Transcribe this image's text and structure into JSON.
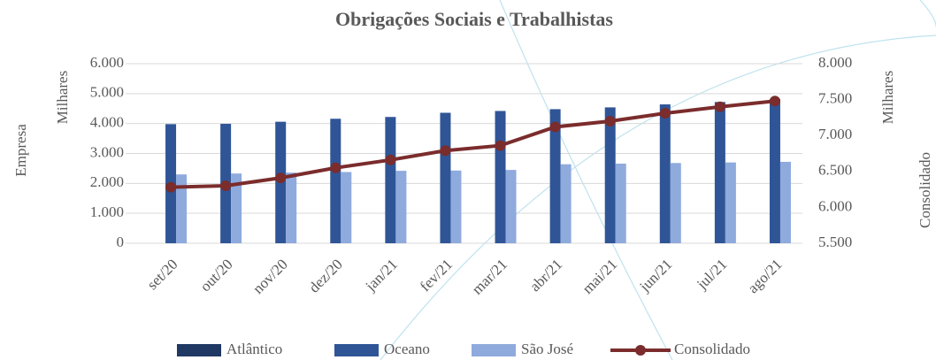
{
  "chart_data": {
    "type": "bar",
    "title": "Obrigações Sociais e Trabalhistas",
    "y_label_outer": "Empresa",
    "y_label": "Milhares",
    "y2_label": "Milhares",
    "y2_label_outer": "Consolidado",
    "categories": [
      "set/20",
      "out/20",
      "nov/20",
      "dez/20",
      "jan/21",
      "fev/21",
      "mar/21",
      "abr/21",
      "mai/21",
      "jun/21",
      "jul/21",
      "ago/21"
    ],
    "series": [
      {
        "name": "Atlântico",
        "type": "bar",
        "color": "#1f3864",
        "values": [
          0,
          0,
          0,
          0,
          0,
          0,
          0,
          0,
          0,
          0,
          0,
          0
        ]
      },
      {
        "name": "Oceano",
        "type": "bar",
        "color": "#2f5597",
        "values": [
          3980,
          3990,
          4060,
          4160,
          4220,
          4360,
          4420,
          4480,
          4540,
          4640,
          4720,
          4820
        ]
      },
      {
        "name": "São José",
        "type": "bar",
        "color": "#8faadc",
        "values": [
          2300,
          2330,
          2360,
          2380,
          2420,
          2430,
          2450,
          2640,
          2660,
          2680,
          2700,
          2720
        ]
      },
      {
        "name": "Consolidado",
        "type": "line",
        "axis": "y2",
        "color": "#7b2c2c",
        "values": [
          6280,
          6300,
          6410,
          6550,
          6660,
          6790,
          6860,
          7120,
          7200,
          7310,
          7400,
          7480
        ]
      }
    ],
    "ylim": [
      0,
      6000
    ],
    "yticks": [
      0,
      {
        "value": 1000,
        "label": "1.000"
      },
      {
        "value": 2000,
        "label": "2.000"
      },
      {
        "value": 3000,
        "label": "3.000"
      },
      {
        "value": 4000,
        "label": "4.000"
      },
      {
        "value": 5000,
        "label": "5.000"
      },
      {
        "value": 6000,
        "label": "6.000"
      }
    ],
    "y2lim": [
      5500,
      8000
    ],
    "y2ticks": [
      {
        "value": 5500,
        "label": "5.500"
      },
      {
        "value": 6000,
        "label": "6.000"
      },
      {
        "value": 6500,
        "label": "6.500"
      },
      {
        "value": 7000,
        "label": "7.000"
      },
      {
        "value": 7500,
        "label": "7.500"
      },
      {
        "value": 8000,
        "label": "8.000"
      }
    ],
    "grid": true,
    "legend": "bottom"
  }
}
